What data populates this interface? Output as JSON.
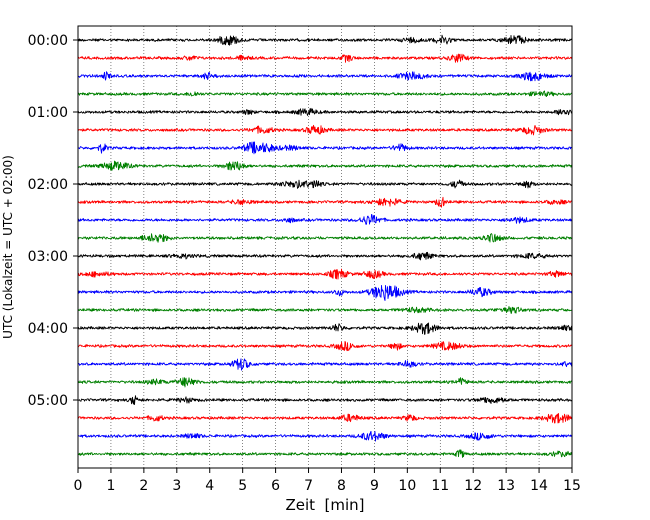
{
  "chart_data": {
    "type": "line",
    "title": "",
    "xlabel": "Zeit  [min]",
    "ylabel": "UTC (Lokalzeit = UTC + 02:00)",
    "xlim": [
      0,
      15
    ],
    "x_ticks": [
      "0",
      "1",
      "2",
      "3",
      "4",
      "5",
      "6",
      "7",
      "8",
      "9",
      "10",
      "11",
      "12",
      "13",
      "14",
      "15"
    ],
    "y_tick_labels": [
      "00:00",
      "01:00",
      "02:00",
      "03:00",
      "04:00",
      "05:00"
    ],
    "trace_interval_min": 15,
    "trace_count": 24,
    "trace_start_times": [
      "00:00",
      "00:15",
      "00:30",
      "00:45",
      "01:00",
      "01:15",
      "01:30",
      "01:45",
      "02:00",
      "02:15",
      "02:30",
      "02:45",
      "03:00",
      "03:15",
      "03:30",
      "03:45",
      "04:00",
      "04:15",
      "04:30",
      "04:45",
      "05:00",
      "05:15",
      "05:30",
      "05:45"
    ],
    "color_cycle": [
      "#000000",
      "#ff0000",
      "#0000ff",
      "#008000"
    ],
    "grid": "vertical dotted lines at each minute"
  }
}
